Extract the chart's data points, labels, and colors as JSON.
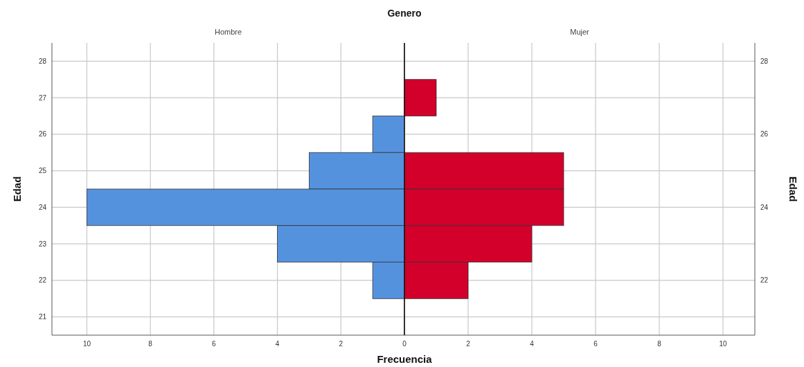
{
  "chart_data": [
    {
      "type": "bar",
      "orientation": "horizontal",
      "title": "Genero",
      "subtitle": "Hombre",
      "xlabel": "Frecuencia",
      "ylabel": "Edad",
      "categories": [
        "28",
        "27",
        "26",
        "25",
        "24",
        "23",
        "22",
        "21"
      ],
      "values": [
        null,
        null,
        1,
        3,
        10,
        4,
        1,
        null
      ],
      "color": "#5592de",
      "xlim": [
        11.1,
        0
      ],
      "xticks": [
        10,
        8,
        6,
        4,
        2,
        0
      ],
      "grid": true
    },
    {
      "type": "bar",
      "orientation": "horizontal",
      "subtitle": "Mujer",
      "ylabel": "Edad",
      "categories": [
        "28",
        null,
        "26",
        null,
        "24",
        null,
        "22",
        null
      ],
      "values": [
        null,
        1,
        null,
        5,
        5,
        4,
        2,
        null
      ],
      "color": "#d2002a",
      "xlim": [
        0,
        11
      ],
      "xticks": [
        {
          "value": 0,
          "label": null
        },
        2,
        4,
        6,
        8,
        10
      ],
      "grid": true
    }
  ]
}
